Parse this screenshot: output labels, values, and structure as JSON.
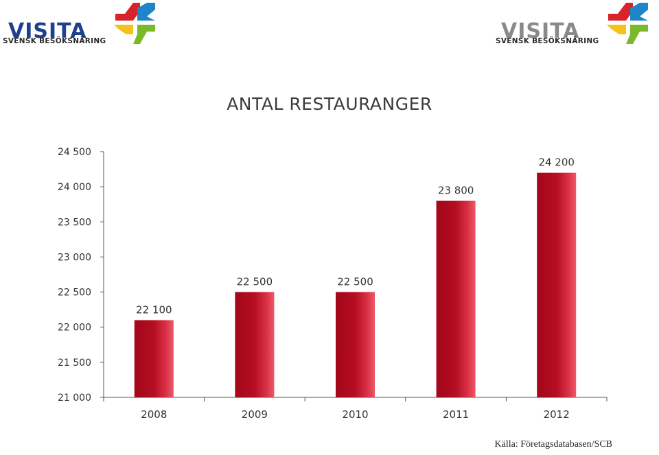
{
  "logos": [
    {
      "word": "VISITA",
      "sub": "SVENSK BESÖKSNÄRING",
      "word_color": "#1f3f8f",
      "mark_colors": {
        "red": "#d8232a",
        "blue": "#1e86c8",
        "green": "#7ab929",
        "yellow": "#f4c21b"
      }
    },
    {
      "word": "VISITA",
      "sub": "SVENSK BESÖKSNÄRING",
      "word_color": "#8a8a8a",
      "mark_colors": {
        "red": "#d8232a",
        "blue": "#1e86c8",
        "green": "#7ab929",
        "yellow": "#f4c21b"
      }
    }
  ],
  "chart_data": {
    "type": "bar",
    "title": "ANTAL RESTAURANGER",
    "categories": [
      "2008",
      "2009",
      "2010",
      "2011",
      "2012"
    ],
    "values": [
      22100,
      22500,
      22500,
      23800,
      24200
    ],
    "data_labels": [
      "22 100",
      "22 500",
      "22 500",
      "23 800",
      "24 200"
    ],
    "ylim": [
      21000,
      24500
    ],
    "yticks": [
      21000,
      21500,
      22000,
      22500,
      23000,
      23500,
      24000,
      24500
    ],
    "ytick_labels": [
      "21 000",
      "21 500",
      "22 000",
      "22 500",
      "23 000",
      "23 500",
      "24 000",
      "24 500"
    ],
    "xlabel": "",
    "ylabel": "",
    "grid": false,
    "bar_color": "#b0101e"
  },
  "source": "Källa: Företagsdatabasen/SCB"
}
